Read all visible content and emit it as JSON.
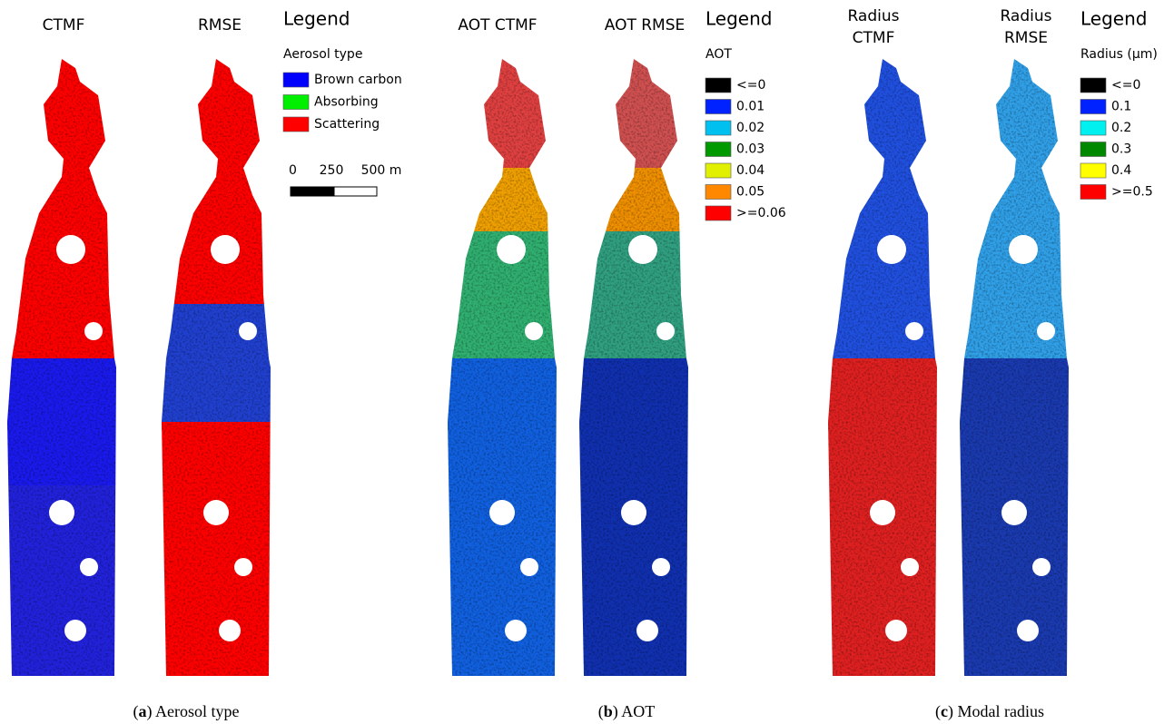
{
  "panels": [
    {
      "maps": [
        {
          "title": [
            "CTMF"
          ]
        },
        {
          "title": [
            "RMSE"
          ]
        }
      ],
      "legend": {
        "title": "Legend",
        "subtitle": "Aerosol type",
        "items": [
          {
            "label": "Brown carbon",
            "color": "#0000ff"
          },
          {
            "label": "Absorbing",
            "color": "#00ee00"
          },
          {
            "label": "Scattering",
            "color": "#ff0000"
          }
        ]
      },
      "scale_bar": [
        "0",
        "250",
        "500 m"
      ],
      "caption": {
        "open": "(",
        "label": "a",
        "rest": ") Aerosol type"
      }
    },
    {
      "maps": [
        {
          "title": [
            "AOT CTMF"
          ]
        },
        {
          "title": [
            "AOT RMSE"
          ]
        }
      ],
      "legend": {
        "title": "Legend",
        "subtitle": "AOT",
        "items": [
          {
            "label": "<=0",
            "color": "#000000"
          },
          {
            "label": "0.01",
            "color": "#0022ff"
          },
          {
            "label": "0.02",
            "color": "#00c0f0"
          },
          {
            "label": "0.03",
            "color": "#009900"
          },
          {
            "label": "0.04",
            "color": "#e0f000"
          },
          {
            "label": "0.05",
            "color": "#ff8800"
          },
          {
            "label": ">=0.06",
            "color": "#ff0000"
          }
        ]
      },
      "caption": {
        "open": "(",
        "label": "b",
        "rest": ") AOT"
      }
    },
    {
      "maps": [
        {
          "title": [
            "Radius",
            "CTMF"
          ]
        },
        {
          "title": [
            "Radius",
            "RMSE"
          ]
        }
      ],
      "legend": {
        "title": "Legend",
        "subtitle": "Radius (μm)",
        "items": [
          {
            "label": "<=0",
            "color": "#000000"
          },
          {
            "label": "0.1",
            "color": "#0022ff"
          },
          {
            "label": "0.2",
            "color": "#00f0f0"
          },
          {
            "label": "0.3",
            "color": "#008800"
          },
          {
            "label": "0.4",
            "color": "#ffff00"
          },
          {
            "label": ">=0.5",
            "color": "#ff0000"
          }
        ]
      },
      "caption": {
        "open": "(",
        "label": "c",
        "rest": ") Modal radius"
      }
    }
  ]
}
